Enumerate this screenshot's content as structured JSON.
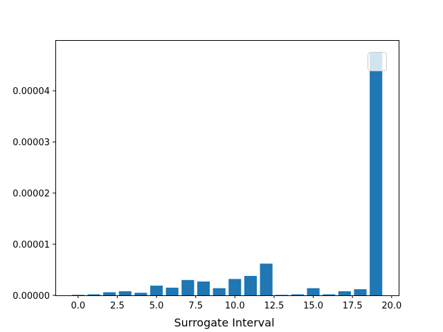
{
  "chart_data": {
    "type": "bar",
    "xlabel": "Surrogate Interval",
    "ylabel": "",
    "title": "",
    "x": [
      0,
      1,
      2,
      3,
      4,
      5,
      6,
      7,
      8,
      9,
      10,
      11,
      12,
      13,
      14,
      15,
      16,
      17,
      18,
      19
    ],
    "values": [
      1e-07,
      2e-07,
      6e-07,
      8e-07,
      5e-07,
      1.9e-06,
      1.5e-06,
      3e-06,
      2.7e-06,
      1.4e-06,
      3.2e-06,
      3.8e-06,
      6.2e-06,
      1e-07,
      2e-07,
      1.4e-06,
      2e-07,
      8e-07,
      1.2e-06,
      4.75e-05
    ],
    "bar_color": "#1f77b4",
    "xlim": [
      -1.45,
      20.45
    ],
    "ylim": [
      0,
      4.99e-05
    ],
    "x_ticks": [
      0.0,
      2.5,
      5.0,
      7.5,
      10.0,
      12.5,
      15.0,
      17.5,
      20.0
    ],
    "x_tick_labels": [
      "0.0",
      "2.5",
      "5.0",
      "7.5",
      "10.0",
      "12.5",
      "15.0",
      "17.5",
      "20.0"
    ],
    "y_ticks": [
      0,
      1e-05,
      2e-05,
      3e-05,
      4e-05
    ],
    "y_tick_labels": [
      "0.00000",
      "0.00001",
      "0.00002",
      "0.00003",
      "0.00004"
    ],
    "grid": false,
    "legend": {
      "placement": "upper-right",
      "entries": []
    }
  }
}
